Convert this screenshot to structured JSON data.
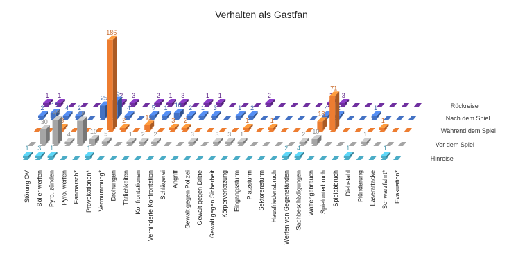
{
  "chart_data": {
    "type": "bar",
    "title": "Verhalten als Gastfan",
    "categories": [
      "Störung ÖV",
      "Böller werfen",
      "Pyro. zünden",
      "Pyro. werfen",
      "Fanmarsch*",
      "Provokationen*",
      "Vermummung*",
      "Drohungen",
      "Tätlichkeiten",
      "Konfrontationen",
      "Verhinderte Konfrontation",
      "Schlägerei",
      "Angriff",
      "Gewalt gegen Polizei",
      "Gewalt gegen Dritte",
      "Gewalt gegen Sicherheit",
      "Körperverletzung",
      "Eingangssturm",
      "Platzsturm",
      "Sektorensturm",
      "Hausfriedensbruch",
      "Werfen von Gegenständen",
      "Sachbeschädigungen",
      "Waffengebrauch",
      "Spielunterbruch",
      "Spielabbruch",
      "Diebstahl",
      "Plünderung",
      "Laserattacke",
      "Schwarzfahrt*",
      "Evakuation*"
    ],
    "series": [
      {
        "name": "Hinreise",
        "color": "#4bacc6",
        "values": [
          1,
          3,
          1,
          null,
          null,
          1,
          null,
          null,
          null,
          null,
          null,
          null,
          null,
          null,
          null,
          null,
          null,
          null,
          null,
          null,
          null,
          2,
          4,
          null,
          null,
          null,
          1,
          null,
          null,
          1,
          null
        ]
      },
      {
        "name": "Vor dem Spiel",
        "color": "#a5a5a5",
        "values": [
          null,
          30,
          49,
          4,
          48,
          10,
          5,
          null,
          1,
          2,
          2,
          null,
          null,
          3,
          null,
          3,
          3,
          1,
          null,
          null,
          null,
          null,
          2,
          10,
          null,
          null,
          null,
          1,
          null,
          null,
          null
        ]
      },
      {
        "name": "Während dem Spiel",
        "color": "#ed7d31",
        "values": [
          null,
          null,
          3,
          null,
          null,
          null,
          186,
          2,
          null,
          11,
          null,
          3,
          2,
          null,
          null,
          null,
          null,
          1,
          null,
          1,
          null,
          null,
          null,
          18,
          71,
          null,
          null,
          null,
          1,
          null,
          null
        ]
      },
      {
        "name": "Nach dem Spiel",
        "color": "#4472c4",
        "values": [
          2,
          10,
          4,
          2,
          null,
          25,
          35,
          4,
          null,
          5,
          1,
          10,
          2,
          1,
          3,
          null,
          1,
          2,
          null,
          null,
          null,
          null,
          null,
          4,
          2,
          null,
          null,
          1,
          null,
          null,
          null
        ]
      },
      {
        "name": "Rückreise",
        "color": "#7030a0",
        "values": [
          1,
          1,
          null,
          null,
          null,
          null,
          2,
          3,
          null,
          2,
          1,
          3,
          null,
          1,
          1,
          null,
          null,
          null,
          2,
          null,
          null,
          null,
          null,
          1,
          3,
          null,
          null,
          null,
          null,
          null,
          null
        ]
      }
    ]
  }
}
